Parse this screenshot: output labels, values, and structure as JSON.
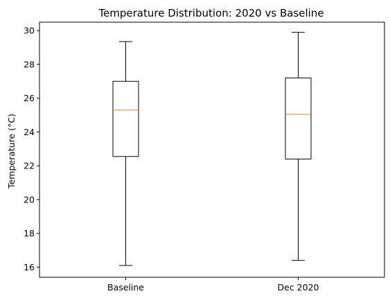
{
  "chart_data": {
    "type": "box",
    "title": "Temperature Distribution: 2020 vs Baseline",
    "xlabel": "",
    "ylabel": "Temperature (°C)",
    "ylim": [
      15.4,
      30.5
    ],
    "yticks": [
      16,
      18,
      20,
      22,
      24,
      26,
      28,
      30
    ],
    "categories": [
      "Baseline",
      "Dec 2020"
    ],
    "boxes": [
      {
        "label": "Baseline",
        "whisker_low": 16.1,
        "q1": 22.55,
        "median": 25.3,
        "q3": 27.0,
        "whisker_high": 29.35
      },
      {
        "label": "Dec 2020",
        "whisker_low": 16.4,
        "q1": 22.4,
        "median": 25.05,
        "q3": 27.2,
        "whisker_high": 29.9
      }
    ],
    "grid": false,
    "colors": {
      "box": "#000000",
      "median": "#ff7f0e",
      "axes": "#000000"
    }
  }
}
